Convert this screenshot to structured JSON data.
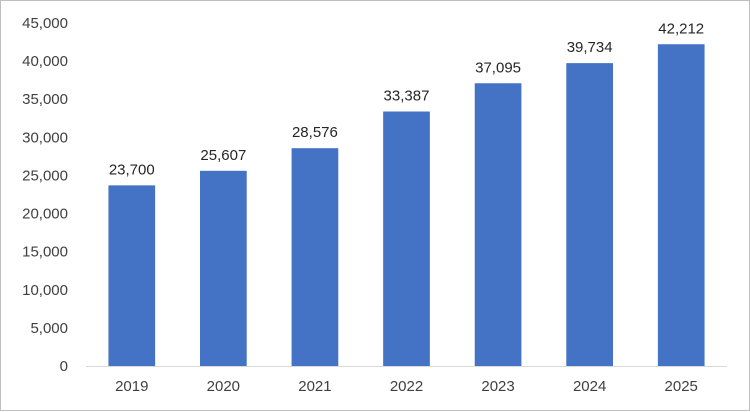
{
  "chart_data": {
    "type": "bar",
    "title": "",
    "xlabel": "",
    "ylabel": "",
    "categories": [
      "2019",
      "2020",
      "2021",
      "2022",
      "2023",
      "2024",
      "2025"
    ],
    "values": [
      23700,
      25607,
      28576,
      33387,
      37095,
      39734,
      42212
    ],
    "data_labels": [
      "23,700",
      "25,607",
      "28,576",
      "33,387",
      "37,095",
      "39,734",
      "42,212"
    ],
    "ylim": [
      0,
      45000
    ],
    "yticks": [
      0,
      5000,
      10000,
      15000,
      20000,
      25000,
      30000,
      35000,
      40000,
      45000
    ],
    "ytick_labels": [
      "0",
      "5,000",
      "10,000",
      "15,000",
      "20,000",
      "25,000",
      "30,000",
      "35,000",
      "40,000",
      "45,000"
    ],
    "grid": false,
    "legend": "none",
    "colors": {
      "bar": "#4472c4",
      "axis": "#d9d9d9"
    }
  }
}
